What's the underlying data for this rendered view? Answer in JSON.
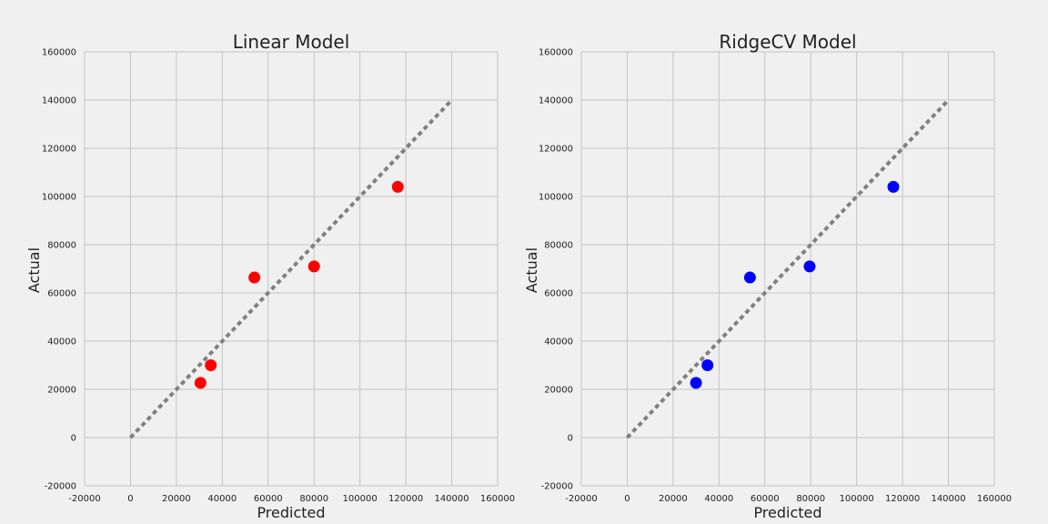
{
  "chart_data": [
    {
      "type": "scatter",
      "title": "Linear Model",
      "xlabel": "Predicted",
      "ylabel": "Actual",
      "xlim": [
        -20000,
        160000
      ],
      "ylim": [
        -20000,
        160000
      ],
      "xticks": [
        -20000,
        0,
        20000,
        40000,
        60000,
        80000,
        100000,
        120000,
        140000,
        160000
      ],
      "yticks": [
        -20000,
        0,
        20000,
        40000,
        60000,
        80000,
        100000,
        120000,
        140000,
        160000
      ],
      "grid": true,
      "marker_color": "#ff0000",
      "reference_line": {
        "from": [
          0,
          0
        ],
        "to": [
          140000,
          140000
        ],
        "color": "#808080",
        "style": "dashed"
      },
      "points": [
        {
          "x": 30500,
          "y": 22700
        },
        {
          "x": 35000,
          "y": 30000
        },
        {
          "x": 54000,
          "y": 66400
        },
        {
          "x": 80000,
          "y": 71000
        },
        {
          "x": 116500,
          "y": 104000
        }
      ]
    },
    {
      "type": "scatter",
      "title": "RidgeCV Model",
      "xlabel": "Predicted",
      "ylabel": "Actual",
      "xlim": [
        -20000,
        160000
      ],
      "ylim": [
        -20000,
        160000
      ],
      "xticks": [
        -20000,
        0,
        20000,
        40000,
        60000,
        80000,
        100000,
        120000,
        140000,
        160000
      ],
      "yticks": [
        -20000,
        0,
        20000,
        40000,
        60000,
        80000,
        100000,
        120000,
        140000,
        160000
      ],
      "grid": true,
      "marker_color": "#0000ff",
      "reference_line": {
        "from": [
          0,
          0
        ],
        "to": [
          140000,
          140000
        ],
        "color": "#808080",
        "style": "dashed"
      },
      "points": [
        {
          "x": 30000,
          "y": 22700
        },
        {
          "x": 35000,
          "y": 30000
        },
        {
          "x": 53500,
          "y": 66400
        },
        {
          "x": 79500,
          "y": 71000
        },
        {
          "x": 116000,
          "y": 104000
        }
      ]
    }
  ]
}
